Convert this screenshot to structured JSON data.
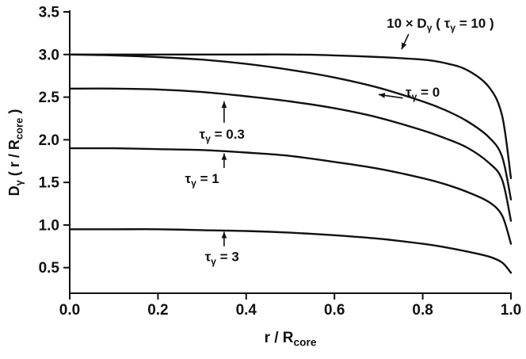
{
  "figure": {
    "background": "#ffffff",
    "ink": "#111111"
  },
  "chart_data": {
    "type": "line",
    "title": "",
    "xlabel": "r / R_{core}",
    "ylabel": "D_{γ} ( r / R_{core} )",
    "xlim": [
      0.0,
      1.0
    ],
    "ylim": [
      0.2,
      3.5
    ],
    "grid": false,
    "legend": "none (inline annotations)",
    "xticks": [
      0.0,
      0.2,
      0.4,
      0.6,
      0.8,
      1.0
    ],
    "xtick_labels": [
      "0.0",
      "0.2",
      "0.4",
      "0.6",
      "0.8",
      "1.0"
    ],
    "yticks": [
      0.5,
      1.0,
      1.5,
      2.0,
      2.5,
      3.0,
      3.5
    ],
    "ytick_labels": [
      "0.5",
      "1.0",
      "1.5",
      "2.0",
      "2.5",
      "3.0",
      "3.5"
    ],
    "x": [
      0.0,
      0.1,
      0.2,
      0.3,
      0.4,
      0.5,
      0.6,
      0.7,
      0.8,
      0.85,
      0.9,
      0.95,
      0.98,
      1.0
    ],
    "series": [
      {
        "name": "10 × Dγ(τγ = 10)",
        "values": [
          3.0,
          3.0,
          3.0,
          3.0,
          3.0,
          3.0,
          2.99,
          2.97,
          2.94,
          2.9,
          2.82,
          2.62,
          2.28,
          1.55
        ]
      },
      {
        "name": "τγ = 0",
        "values": [
          3.0,
          2.99,
          2.97,
          2.94,
          2.89,
          2.82,
          2.73,
          2.61,
          2.45,
          2.35,
          2.22,
          2.03,
          1.8,
          1.3
        ]
      },
      {
        "name": "τγ = 0.3",
        "values": [
          2.6,
          2.6,
          2.59,
          2.56,
          2.51,
          2.45,
          2.37,
          2.26,
          2.11,
          2.02,
          1.91,
          1.73,
          1.53,
          1.05
        ]
      },
      {
        "name": "τγ = 1",
        "values": [
          1.9,
          1.9,
          1.89,
          1.88,
          1.85,
          1.81,
          1.74,
          1.66,
          1.55,
          1.48,
          1.39,
          1.27,
          1.11,
          0.78
        ]
      },
      {
        "name": "τγ = 3",
        "values": [
          0.95,
          0.95,
          0.95,
          0.94,
          0.93,
          0.91,
          0.88,
          0.84,
          0.78,
          0.74,
          0.69,
          0.63,
          0.56,
          0.44
        ]
      }
    ],
    "annotations": [
      {
        "text": "10 × D_{γ} ( τ_{γ} = 10 )",
        "x": 0.84,
        "y": 3.37,
        "arrow": {
          "x1": 0.768,
          "y1": 3.24,
          "x2": 0.752,
          "y2": 3.06
        }
      },
      {
        "text": "τ_{γ} = 0",
        "x": 0.8,
        "y": 2.56,
        "arrow": {
          "x1": 0.755,
          "y1": 2.49,
          "x2": 0.7,
          "y2": 2.53
        }
      },
      {
        "text": "τ_{γ} = 0.3",
        "x": 0.345,
        "y": 2.07,
        "arrow": {
          "x1": 0.35,
          "y1": 2.2,
          "x2": 0.35,
          "y2": 2.45
        }
      },
      {
        "text": "τ_{γ} = 1",
        "x": 0.3,
        "y": 1.55,
        "arrow": {
          "x1": 0.35,
          "y1": 1.67,
          "x2": 0.35,
          "y2": 1.84
        }
      },
      {
        "text": "τ_{γ} = 3",
        "x": 0.345,
        "y": 0.63,
        "arrow": {
          "x1": 0.35,
          "y1": 0.75,
          "x2": 0.35,
          "y2": 0.92
        }
      }
    ]
  }
}
